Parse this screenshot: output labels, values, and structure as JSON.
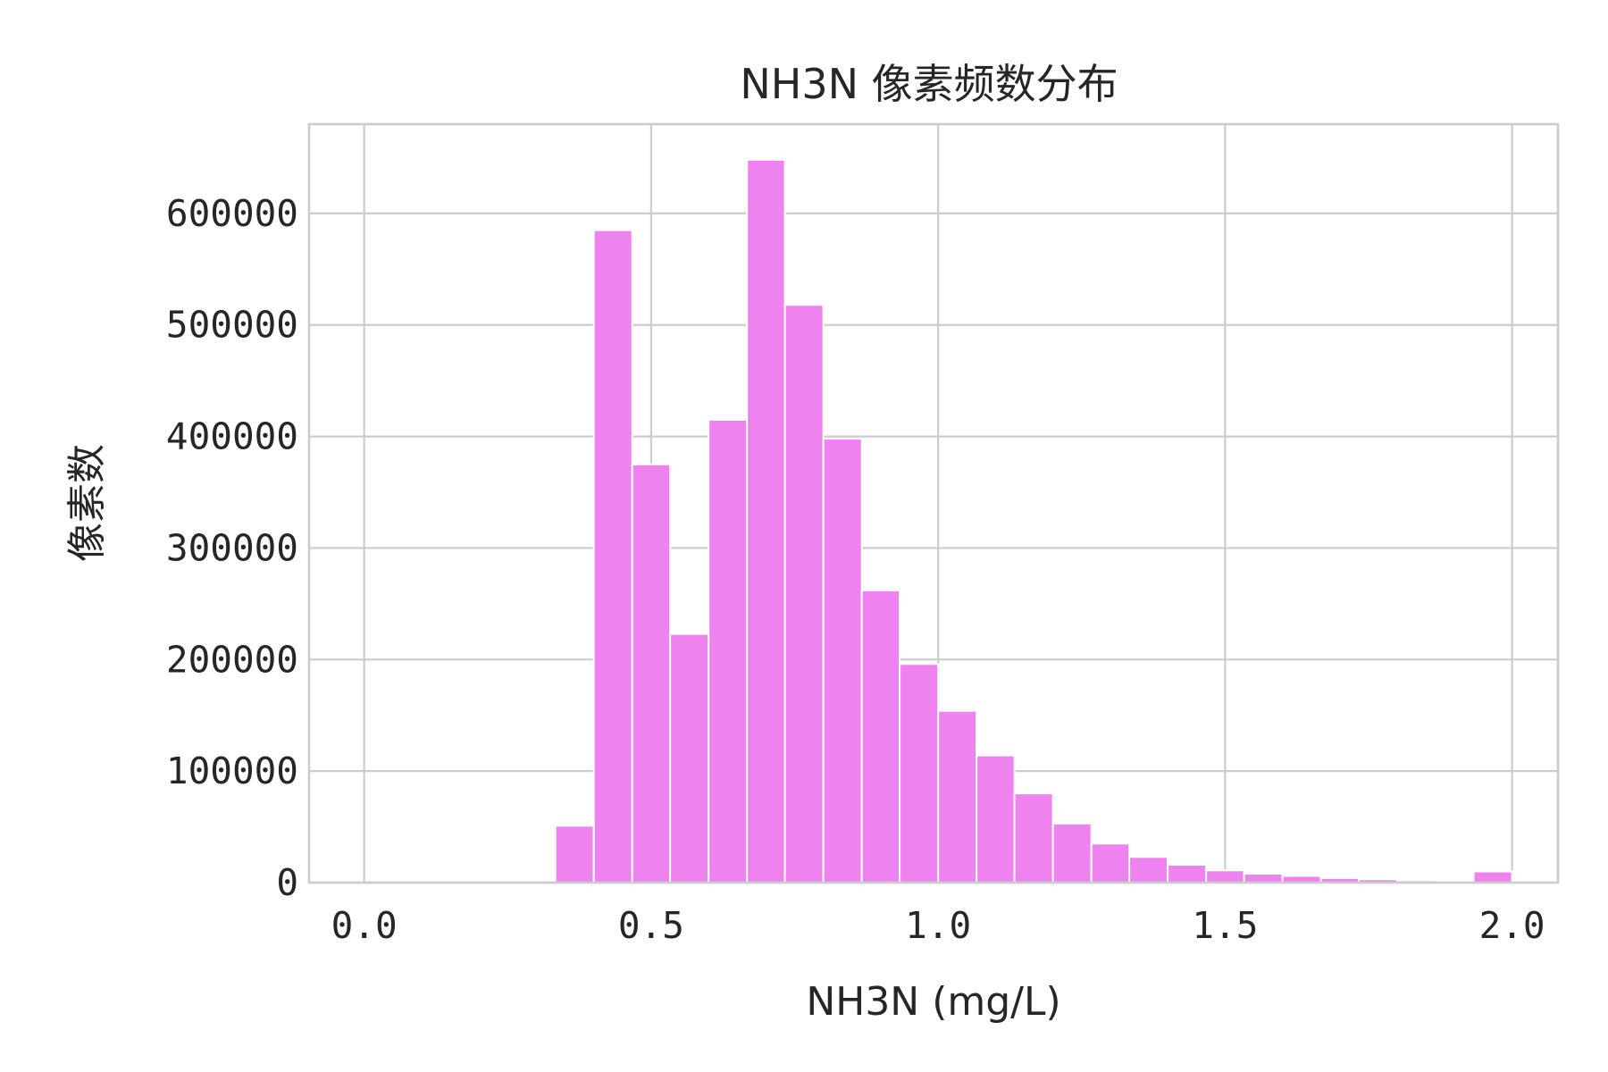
{
  "chart_data": {
    "type": "bar",
    "title": "NH3N 像素频数分布",
    "xlabel": "NH3N (mg/L)",
    "ylabel": "像素数",
    "xlim": [
      -0.096,
      2.08
    ],
    "ylim": [
      0,
      680000
    ],
    "x_ticks": [
      {
        "value": 0.0,
        "label": "0.0"
      },
      {
        "value": 0.5,
        "label": "0.5"
      },
      {
        "value": 1.0,
        "label": "1.0"
      },
      {
        "value": 1.5,
        "label": "1.5"
      },
      {
        "value": 2.0,
        "label": "2.0"
      }
    ],
    "y_ticks": [
      {
        "value": 0,
        "label": "0"
      },
      {
        "value": 100000,
        "label": "100000"
      },
      {
        "value": 200000,
        "label": "200000"
      },
      {
        "value": 300000,
        "label": "300000"
      },
      {
        "value": 400000,
        "label": "400000"
      },
      {
        "value": 500000,
        "label": "500000"
      },
      {
        "value": 600000,
        "label": "600000"
      }
    ],
    "grid": true,
    "bin_width": 0.0667,
    "bins": [
      {
        "x0": 0.0,
        "x1": 0.067,
        "value": 0
      },
      {
        "x0": 0.067,
        "x1": 0.133,
        "value": 0
      },
      {
        "x0": 0.133,
        "x1": 0.2,
        "value": 0
      },
      {
        "x0": 0.2,
        "x1": 0.267,
        "value": 0
      },
      {
        "x0": 0.267,
        "x1": 0.333,
        "value": 0
      },
      {
        "x0": 0.333,
        "x1": 0.4,
        "value": 51000
      },
      {
        "x0": 0.4,
        "x1": 0.467,
        "value": 585000
      },
      {
        "x0": 0.467,
        "x1": 0.533,
        "value": 375000
      },
      {
        "x0": 0.533,
        "x1": 0.6,
        "value": 223000
      },
      {
        "x0": 0.6,
        "x1": 0.667,
        "value": 415000
      },
      {
        "x0": 0.667,
        "x1": 0.733,
        "value": 648000
      },
      {
        "x0": 0.733,
        "x1": 0.8,
        "value": 518000
      },
      {
        "x0": 0.8,
        "x1": 0.867,
        "value": 398000
      },
      {
        "x0": 0.867,
        "x1": 0.933,
        "value": 262000
      },
      {
        "x0": 0.933,
        "x1": 1.0,
        "value": 196000
      },
      {
        "x0": 1.0,
        "x1": 1.067,
        "value": 154000
      },
      {
        "x0": 1.067,
        "x1": 1.133,
        "value": 114000
      },
      {
        "x0": 1.133,
        "x1": 1.2,
        "value": 80000
      },
      {
        "x0": 1.2,
        "x1": 1.267,
        "value": 53000
      },
      {
        "x0": 1.267,
        "x1": 1.333,
        "value": 35000
      },
      {
        "x0": 1.333,
        "x1": 1.4,
        "value": 23000
      },
      {
        "x0": 1.4,
        "x1": 1.467,
        "value": 16000
      },
      {
        "x0": 1.467,
        "x1": 1.533,
        "value": 11000
      },
      {
        "x0": 1.533,
        "x1": 1.6,
        "value": 8000
      },
      {
        "x0": 1.6,
        "x1": 1.667,
        "value": 6000
      },
      {
        "x0": 1.667,
        "x1": 1.733,
        "value": 4000
      },
      {
        "x0": 1.733,
        "x1": 1.8,
        "value": 3000
      },
      {
        "x0": 1.8,
        "x1": 1.867,
        "value": 2000
      },
      {
        "x0": 1.867,
        "x1": 1.933,
        "value": 1000
      },
      {
        "x0": 1.933,
        "x1": 2.0,
        "value": 10000
      }
    ],
    "bar_color": "#ee82ee"
  }
}
